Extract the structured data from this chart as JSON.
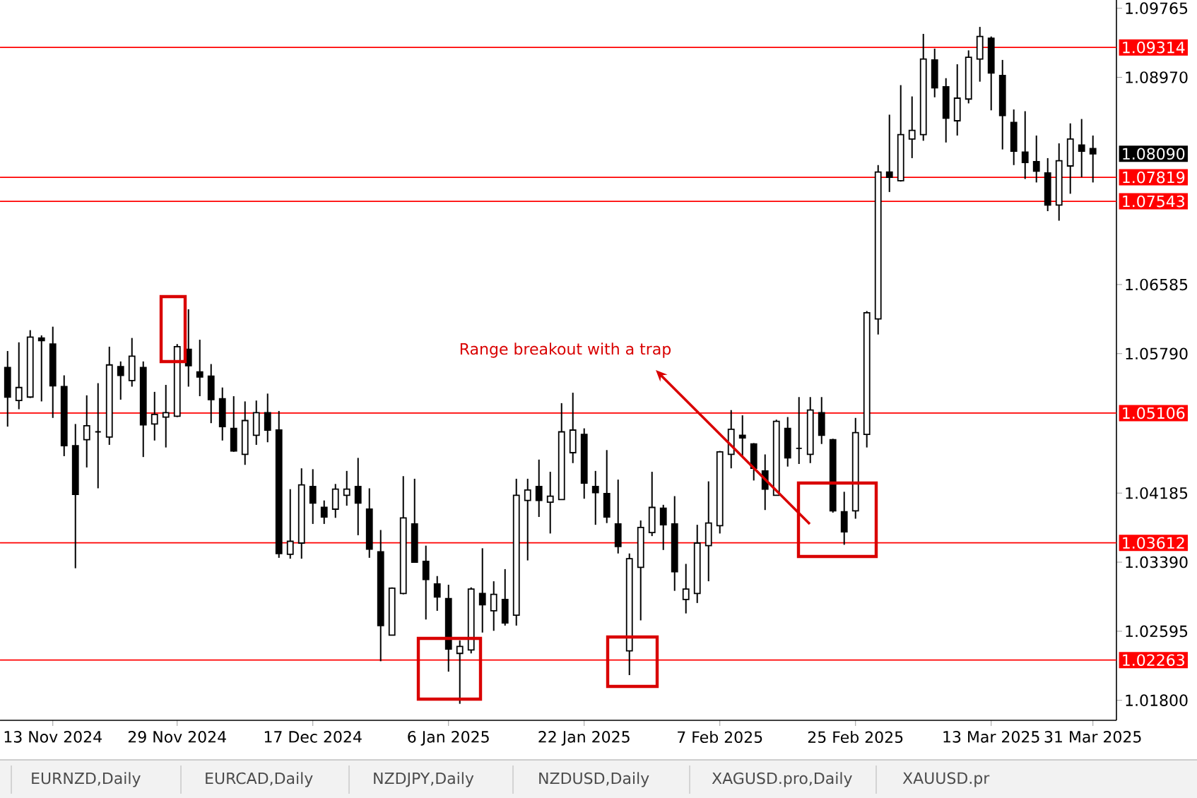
{
  "chart_data": {
    "type": "candlestick",
    "categories": [
      null,
      null,
      null,
      null,
      "13 Nov 2024",
      null,
      null,
      null,
      null,
      null,
      null,
      null,
      null,
      null,
      null,
      "29 Nov 2024",
      null,
      null,
      null,
      null,
      null,
      null,
      null,
      null,
      null,
      null,
      null,
      "17 Dec 2024",
      null,
      null,
      null,
      null,
      null,
      null,
      null,
      null,
      null,
      null,
      null,
      "6 Jan 2025",
      null,
      null,
      null,
      null,
      null,
      null,
      null,
      null,
      null,
      null,
      null,
      "22 Jan 2025",
      null,
      null,
      null,
      null,
      null,
      null,
      null,
      null,
      null,
      null,
      null,
      "7 Feb 2025",
      null,
      null,
      null,
      null,
      null,
      null,
      null,
      null,
      null,
      null,
      null,
      "25 Feb 2025",
      null,
      null,
      null,
      null,
      null,
      null,
      null,
      null,
      null,
      null,
      null,
      "13 Mar 2025",
      null,
      null,
      null,
      null,
      null,
      null,
      null,
      null,
      "31 Mar 2025"
    ],
    "ohlc": [
      [
        1.0563,
        1.0582,
        1.0495,
        1.0529
      ],
      [
        1.0525,
        1.0592,
        1.0515,
        1.054
      ],
      [
        1.0529,
        1.0606,
        1.0528,
        1.0598
      ],
      [
        1.0597,
        1.06,
        1.0524,
        1.0594
      ],
      [
        1.059,
        1.061,
        1.0505,
        1.0542
      ],
      [
        1.0541,
        1.0554,
        1.0461,
        1.0473
      ],
      [
        1.0473,
        1.0498,
        1.0332,
        1.0417
      ],
      [
        1.048,
        1.0531,
        1.0448,
        1.0496
      ],
      [
        1.0489,
        1.0545,
        1.0424,
        1.0489
      ],
      [
        1.0483,
        1.0587,
        1.0474,
        1.0566
      ],
      [
        1.0564,
        1.057,
        1.0526,
        1.0554
      ],
      [
        1.0548,
        1.0597,
        1.0541,
        1.0576
      ],
      [
        1.0563,
        1.057,
        1.046,
        1.0497
      ],
      [
        1.0498,
        1.0535,
        1.0479,
        1.0509
      ],
      [
        1.0506,
        1.0543,
        1.0471,
        1.0511
      ],
      [
        1.0507,
        1.059,
        1.0506,
        1.0587
      ],
      [
        1.0584,
        1.063,
        1.0541,
        1.0565
      ],
      [
        1.0558,
        1.0595,
        1.053,
        1.0552
      ],
      [
        1.0553,
        1.0567,
        1.0499,
        1.0526
      ],
      [
        1.0527,
        1.054,
        1.0479,
        1.0495
      ],
      [
        1.0493,
        1.053,
        1.0466,
        1.0467
      ],
      [
        1.0463,
        1.0524,
        1.0451,
        1.0502
      ],
      [
        1.0485,
        1.0525,
        1.0474,
        1.0511
      ],
      [
        1.0511,
        1.0533,
        1.0477,
        1.0491
      ],
      [
        1.0491,
        1.0513,
        1.0344,
        1.0349
      ],
      [
        1.0348,
        1.0423,
        1.0343,
        1.0363
      ],
      [
        1.0361,
        1.0447,
        1.0343,
        1.0428
      ],
      [
        1.0426,
        1.0446,
        1.0383,
        1.0407
      ],
      [
        1.0402,
        1.041,
        1.0383,
        1.0391
      ],
      [
        1.04,
        1.0429,
        1.039,
        1.0423
      ],
      [
        1.0416,
        1.0444,
        1.0404,
        1.0423
      ],
      [
        1.0426,
        1.0459,
        1.037,
        1.0407
      ],
      [
        1.04,
        1.0424,
        1.0344,
        1.0354
      ],
      [
        1.0351,
        1.0376,
        1.0225,
        1.0266
      ],
      [
        1.0255,
        1.031,
        1.0255,
        1.0309
      ],
      [
        1.0303,
        1.0438,
        1.0302,
        1.039
      ],
      [
        1.0383,
        1.0435,
        1.0339,
        1.0339
      ],
      [
        1.034,
        1.0358,
        1.0273,
        1.0319
      ],
      [
        1.0314,
        1.0323,
        1.0283,
        1.0299
      ],
      [
        1.0297,
        1.0313,
        1.0213,
        1.0239
      ],
      [
        1.0234,
        1.0249,
        1.0176,
        1.0242
      ],
      [
        1.0238,
        1.031,
        1.0234,
        1.0308
      ],
      [
        1.0303,
        1.0355,
        1.0258,
        1.029
      ],
      [
        1.0283,
        1.0317,
        1.026,
        1.0302
      ],
      [
        1.0296,
        1.0331,
        1.0266,
        1.0269
      ],
      [
        1.0278,
        1.0435,
        1.0266,
        1.0416
      ],
      [
        1.041,
        1.0435,
        1.0341,
        1.0422
      ],
      [
        1.0426,
        1.0457,
        1.0391,
        1.041
      ],
      [
        1.0408,
        1.0443,
        1.0372,
        1.0415
      ],
      [
        1.0411,
        1.0522,
        1.0411,
        1.0489
      ],
      [
        1.0465,
        1.0534,
        1.0453,
        1.0491
      ],
      [
        1.0486,
        1.0493,
        1.0412,
        1.043
      ],
      [
        1.0426,
        1.0444,
        1.0382,
        1.0419
      ],
      [
        1.0418,
        1.0468,
        1.0384,
        1.0391
      ],
      [
        1.0383,
        1.0434,
        1.0349,
        1.0357
      ],
      [
        1.0237,
        1.0349,
        1.0209,
        1.0343
      ],
      [
        1.0333,
        1.0387,
        1.0272,
        1.0379
      ],
      [
        1.0373,
        1.0443,
        1.0369,
        1.0402
      ],
      [
        1.0401,
        1.0405,
        1.0353,
        1.0382
      ],
      [
        1.0383,
        1.0415,
        1.0306,
        1.0328
      ],
      [
        1.0296,
        1.0337,
        1.028,
        1.0308
      ],
      [
        1.0303,
        1.0382,
        1.0292,
        1.0361
      ],
      [
        1.0358,
        1.0432,
        1.0317,
        1.0384
      ],
      [
        1.0381,
        1.0467,
        1.0372,
        1.0466
      ],
      [
        1.0463,
        1.0514,
        1.0447,
        1.0492
      ],
      [
        1.0485,
        1.0508,
        1.046,
        1.0482
      ],
      [
        1.0475,
        1.0476,
        1.0433,
        1.0447
      ],
      [
        1.0444,
        1.0463,
        1.0399,
        1.0423
      ],
      [
        1.0416,
        1.0503,
        1.0416,
        1.0501
      ],
      [
        1.0493,
        1.0506,
        1.0449,
        1.0459
      ],
      [
        1.047,
        1.0529,
        1.0452,
        1.047
      ],
      [
        1.0463,
        1.0529,
        1.0453,
        1.0514
      ],
      [
        1.0511,
        1.0529,
        1.0475,
        1.0485
      ],
      [
        1.048,
        1.0481,
        1.0396,
        1.0398
      ],
      [
        1.0397,
        1.042,
        1.0359,
        1.0374
      ],
      [
        1.0398,
        1.0505,
        1.0389,
        1.0488
      ],
      [
        1.0486,
        1.0628,
        1.0471,
        1.0626
      ],
      [
        1.0619,
        1.0796,
        1.0601,
        1.0788
      ],
      [
        1.0788,
        1.0854,
        1.0765,
        1.0782
      ],
      [
        1.0778,
        1.0888,
        1.0777,
        1.0831
      ],
      [
        1.0826,
        1.0875,
        1.0804,
        1.0836
      ],
      [
        1.0831,
        1.0947,
        1.0824,
        1.0918
      ],
      [
        1.0917,
        1.093,
        1.0874,
        1.0885
      ],
      [
        1.0886,
        1.0896,
        1.0822,
        1.085
      ],
      [
        1.0847,
        1.0912,
        1.083,
        1.0873
      ],
      [
        1.0872,
        1.0928,
        1.0867,
        1.092
      ],
      [
        1.0918,
        1.0955,
        1.0892,
        1.0944
      ],
      [
        1.0942,
        1.0944,
        1.0859,
        1.0902
      ],
      [
        1.0899,
        1.0917,
        1.0814,
        1.0853
      ],
      [
        1.0845,
        1.086,
        1.0796,
        1.0812
      ],
      [
        1.0811,
        1.0858,
        1.078,
        1.0799
      ],
      [
        1.08,
        1.083,
        1.0776,
        1.0789
      ],
      [
        1.0787,
        1.0804,
        1.0743,
        1.075
      ],
      [
        1.075,
        1.0821,
        1.0732,
        1.0801
      ],
      [
        1.0795,
        1.0844,
        1.0763,
        1.0826
      ],
      [
        1.0819,
        1.0849,
        1.0782,
        1.0812
      ],
      [
        1.0815,
        1.083,
        1.0776,
        1.0809
      ]
    ],
    "ylim": [
      1.0157,
      1.0986
    ],
    "yticks": [
      {
        "value": 1.09765,
        "label": "1.09765"
      },
      {
        "value": 1.0897,
        "label": "1.08970"
      },
      {
        "value": 1.06585,
        "label": "1.06585"
      },
      {
        "value": 1.0579,
        "label": "1.05790"
      },
      {
        "value": 1.04185,
        "label": "1.04185"
      },
      {
        "value": 1.0339,
        "label": "1.03390"
      },
      {
        "value": 1.02595,
        "label": "1.02595"
      },
      {
        "value": 1.018,
        "label": "1.01800"
      }
    ],
    "ref_lines": [
      {
        "axis": "y",
        "value": 1.09314,
        "label": "1.09314",
        "color": "#ff0000"
      },
      {
        "axis": "y",
        "value": 1.07819,
        "label": "1.07819",
        "color": "#ff0000"
      },
      {
        "axis": "y",
        "value": 1.07543,
        "label": "1.07543",
        "color": "#ff0000"
      },
      {
        "axis": "y",
        "value": 1.05106,
        "label": "1.05106",
        "color": "#ff0000"
      },
      {
        "axis": "y",
        "value": 1.03612,
        "label": "1.03612",
        "color": "#ff0000"
      },
      {
        "axis": "y",
        "value": 1.02263,
        "label": "1.02263",
        "color": "#ff0000"
      }
    ],
    "annotations": [
      "Range breakout with a trap",
      "1.08090",
      "EURNZD,Daily",
      "EURCAD,Daily",
      "NZDJPY,Daily",
      "NZDUSD,Daily",
      "XAGUSD.pro,Daily",
      "XAUUSD.pr"
    ],
    "grid": false
  }
}
